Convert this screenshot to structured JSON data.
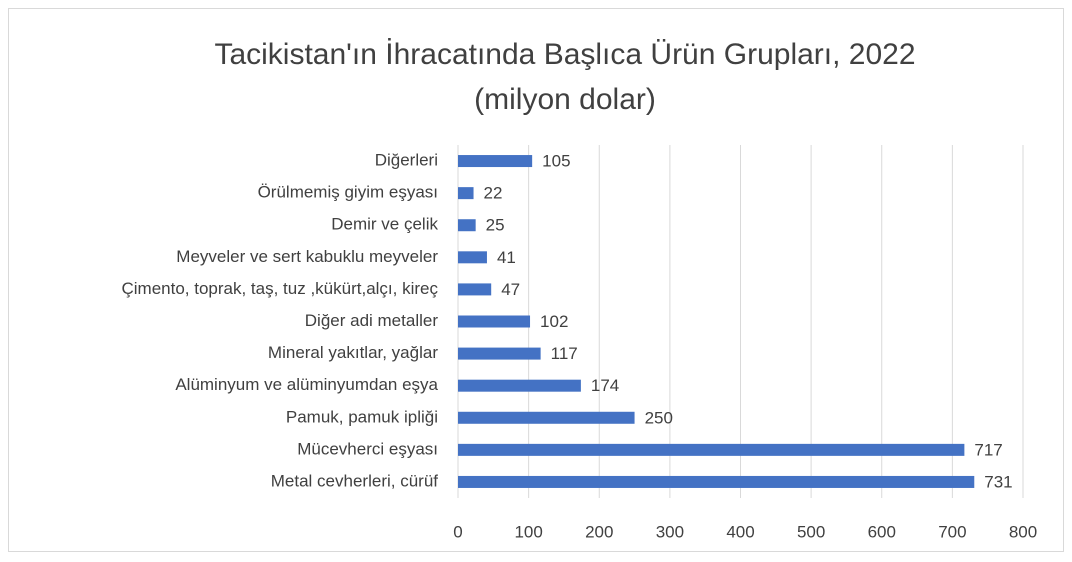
{
  "chart_data": {
    "type": "hbar",
    "title": [
      "Tacikistan'ın İhracatında Başlıca Ürün Grupları, 2022",
      "(milyon dolar)"
    ],
    "categories": [
      "Metal cevherleri, cürüf",
      "Mücevherci eşyası",
      "Pamuk, pamuk ipliği",
      "Alüminyum ve alüminyumdan eşya",
      "Mineral yakıtlar, yağlar",
      "Diğer adi metaller",
      "Çimento, toprak, taş, tuz ,kükürt,alçı, kireç",
      "Meyveler ve sert kabuklu meyveler",
      "Demir ve çelik",
      "Örülmemiş giyim eşyası",
      "Diğerleri"
    ],
    "values": [
      731,
      717,
      250,
      174,
      117,
      102,
      47,
      41,
      25,
      22,
      105
    ],
    "color": "#4472c4",
    "xlim": [
      0,
      800
    ],
    "xticks": [
      0,
      100,
      200,
      300,
      400,
      500,
      600,
      700,
      800
    ],
    "grid": true
  }
}
